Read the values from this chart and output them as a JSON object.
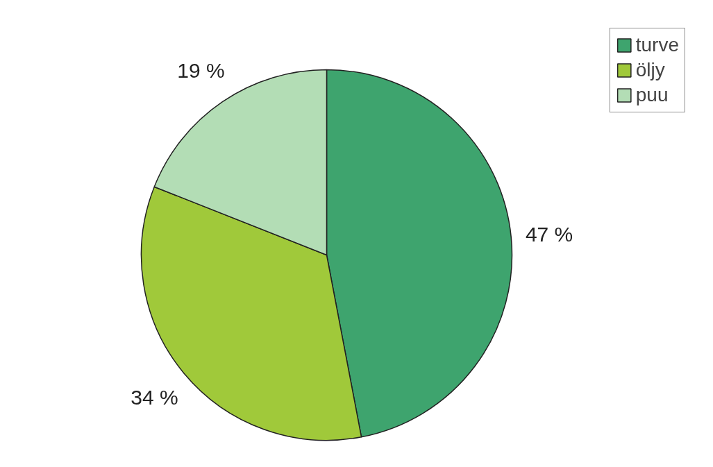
{
  "chart_data": {
    "type": "pie",
    "categories": [
      "turve",
      "öljy",
      "puu"
    ],
    "values": [
      47,
      34,
      19
    ],
    "colors": [
      "#3ea46e",
      "#a0c93a",
      "#b3ddb5"
    ],
    "value_labels": [
      "47 %",
      "34 %",
      "19 %"
    ],
    "legend": "top right"
  }
}
